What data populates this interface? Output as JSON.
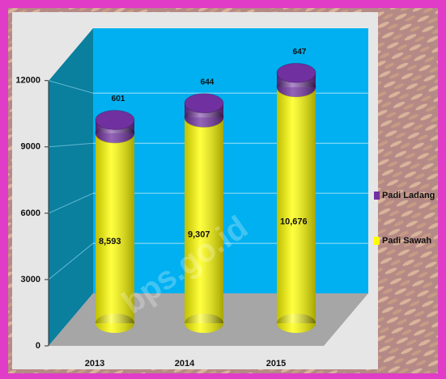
{
  "chart_data": {
    "type": "stacked-cylinder",
    "categories": [
      "2013",
      "2014",
      "2015"
    ],
    "series": [
      {
        "name": "Padi Sawah",
        "color": "#ffff00",
        "values": [
          8593,
          9307,
          10676
        ],
        "value_labels": [
          "8,593",
          "9,307",
          "10,676"
        ]
      },
      {
        "name": "Padi Ladang",
        "color": "#7030a0",
        "values": [
          601,
          644,
          647
        ]
      }
    ],
    "ylim": [
      0,
      14000
    ],
    "yticks": [
      0,
      3000,
      6000,
      9000,
      12000
    ],
    "grid": true,
    "legend": "right",
    "watermark": "bps.go.id"
  }
}
